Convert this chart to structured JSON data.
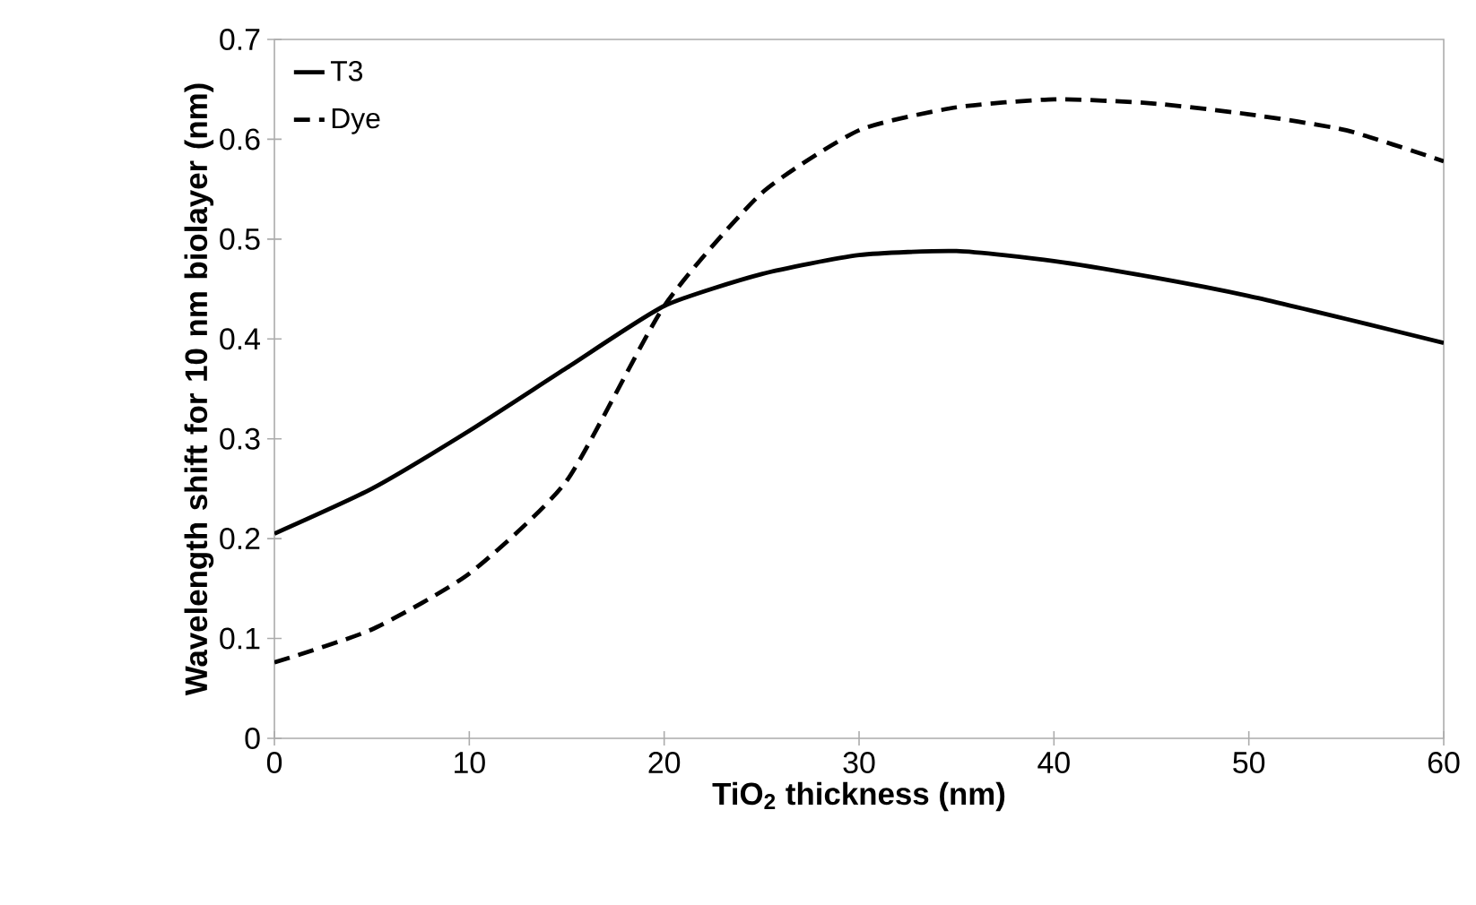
{
  "chart_data": {
    "type": "line",
    "xlabel": "TiO$_{2}$ thickness (nm)",
    "ylabel": "Wavelength shift for 10 nm biolayer (nm)",
    "x": [
      0,
      5,
      10,
      15,
      20,
      25,
      30,
      35,
      40,
      45,
      50,
      55,
      60
    ],
    "series": [
      {
        "name": "T3",
        "color": "#000000",
        "line_style": "solid",
        "values": [
          0.205,
          0.25,
          0.308,
          0.371,
          0.433,
          0.465,
          0.484,
          0.488,
          0.478,
          0.462,
          0.443,
          0.42,
          0.396
        ]
      },
      {
        "name": "Dye",
        "color": "#000000",
        "line_style": "dashed",
        "values": [
          0.076,
          0.109,
          0.165,
          0.258,
          0.433,
          0.546,
          0.609,
          0.632,
          0.64,
          0.636,
          0.625,
          0.609,
          0.578
        ]
      }
    ],
    "xlim": [
      0,
      60
    ],
    "xticks": [
      0,
      10,
      20,
      30,
      40,
      50,
      60
    ],
    "ylim": [
      0,
      0.7
    ],
    "yticks": [
      0,
      0.1,
      0.2,
      0.3,
      0.4,
      0.5,
      0.6,
      0.7
    ],
    "grid": false,
    "legend": "top left",
    "marker": "none"
  }
}
